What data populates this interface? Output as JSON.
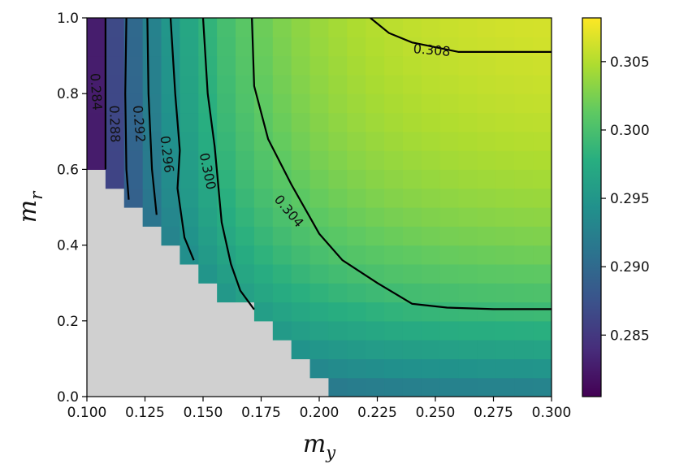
{
  "chart_data": {
    "type": "heatmap",
    "title": "",
    "xlabel": "m",
    "xlabel_sub": "y",
    "ylabel": "m",
    "ylabel_sub": "r",
    "xlim": [
      0.1,
      0.3
    ],
    "ylim": [
      0.0,
      1.0
    ],
    "x_ticks": [
      0.1,
      0.125,
      0.15,
      0.175,
      0.2,
      0.225,
      0.25,
      0.275,
      0.3
    ],
    "x_tick_labels": [
      "0.100",
      "0.125",
      "0.150",
      "0.175",
      "0.200",
      "0.225",
      "0.250",
      "0.275",
      "0.300"
    ],
    "y_ticks": [
      0.0,
      0.2,
      0.4,
      0.6,
      0.8,
      1.0
    ],
    "y_tick_labels": [
      "0.0",
      "0.2",
      "0.4",
      "0.6",
      "0.8",
      "1.0"
    ],
    "grid": false,
    "cells": {
      "nx": 25,
      "ny": 20
    },
    "masked_region": "below line m_r = 0.6 - (m_y - 0.10) * 5.45 (undefined, drawn grey)",
    "masked_color": "#d0d0d0",
    "colormap": "viridis",
    "colorbar": {
      "range": [
        0.2805,
        0.3082
      ],
      "ticks": [
        0.285,
        0.29,
        0.295,
        0.3,
        0.305
      ],
      "tick_labels": [
        "0.285",
        "0.290",
        "0.295",
        "0.300",
        "0.305"
      ]
    },
    "contours": [
      {
        "level": 0.284,
        "label": "0.284",
        "points": [
          [
            0.108,
            1.0
          ],
          [
            0.108,
            0.6
          ]
        ],
        "label_at": [
          0.104,
          0.805
        ],
        "label_angle": 86
      },
      {
        "level": 0.288,
        "label": "0.288",
        "points": [
          [
            0.117,
            1.0
          ],
          [
            0.1165,
            0.8
          ],
          [
            0.117,
            0.6
          ],
          [
            0.118,
            0.52
          ]
        ],
        "label_at": [
          0.112,
          0.72
        ],
        "label_angle": 88
      },
      {
        "level": 0.292,
        "label": "0.292",
        "points": [
          [
            0.126,
            1.0
          ],
          [
            0.1265,
            0.8
          ],
          [
            0.128,
            0.6
          ],
          [
            0.13,
            0.48
          ]
        ],
        "label_at": [
          0.1225,
          0.72
        ],
        "label_angle": 85
      },
      {
        "level": 0.296,
        "label": "0.296",
        "points": [
          [
            0.136,
            1.0
          ],
          [
            0.138,
            0.8
          ],
          [
            0.14,
            0.65
          ],
          [
            0.139,
            0.55
          ],
          [
            0.142,
            0.42
          ],
          [
            0.146,
            0.36
          ]
        ],
        "label_at": [
          0.1345,
          0.64
        ],
        "label_angle": 83
      },
      {
        "level": 0.3,
        "label": "0.300",
        "points": [
          [
            0.15,
            1.0
          ],
          [
            0.152,
            0.8
          ],
          [
            0.155,
            0.66
          ],
          [
            0.158,
            0.46
          ],
          [
            0.162,
            0.35
          ],
          [
            0.166,
            0.28
          ],
          [
            0.172,
            0.23
          ]
        ],
        "label_at": [
          0.152,
          0.595
        ],
        "label_angle": 78
      },
      {
        "level": 0.304,
        "label": "0.304",
        "points": [
          [
            0.171,
            1.0
          ],
          [
            0.172,
            0.82
          ],
          [
            0.178,
            0.68
          ],
          [
            0.188,
            0.56
          ],
          [
            0.2,
            0.43
          ],
          [
            0.21,
            0.36
          ],
          [
            0.225,
            0.3
          ],
          [
            0.24,
            0.245
          ],
          [
            0.255,
            0.235
          ],
          [
            0.275,
            0.231
          ],
          [
            0.3,
            0.231
          ]
        ],
        "label_at": [
          0.187,
          0.49
        ],
        "label_angle": 50
      },
      {
        "level": 0.308,
        "label": "0.308",
        "points": [
          [
            0.222,
            1.0
          ],
          [
            0.23,
            0.96
          ],
          [
            0.24,
            0.935
          ],
          [
            0.26,
            0.91
          ],
          [
            0.3,
            0.91
          ]
        ],
        "label_at": [
          0.2485,
          0.915
        ],
        "label_angle": 5
      }
    ]
  }
}
